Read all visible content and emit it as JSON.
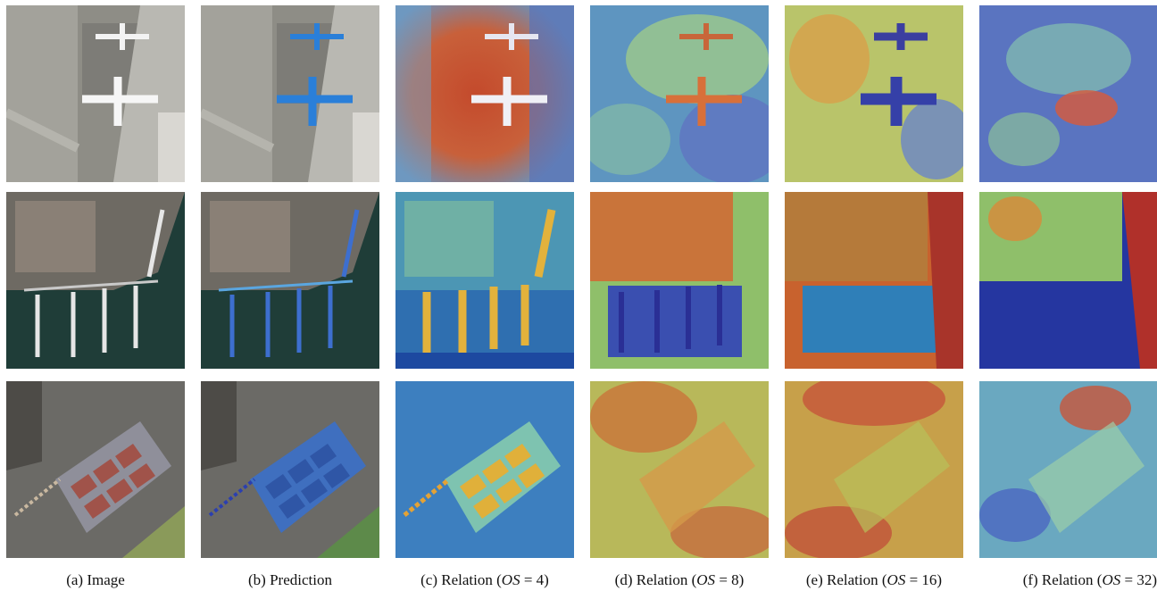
{
  "figure": {
    "columns": [
      {
        "tag": "(a)",
        "label": "Image",
        "kind": "image"
      },
      {
        "tag": "(b)",
        "label": "Prediction",
        "kind": "prediction"
      },
      {
        "tag": "(c)",
        "label": "Relation",
        "os_prefix": "(",
        "os_symbol": "OS",
        "os_eq": " = ",
        "os_value": "4",
        "os_suffix": ")",
        "kind": "relation"
      },
      {
        "tag": "(d)",
        "label": "Relation",
        "os_prefix": "(",
        "os_symbol": "OS",
        "os_eq": " = ",
        "os_value": "8",
        "os_suffix": ")",
        "kind": "relation"
      },
      {
        "tag": "(e)",
        "label": "Relation",
        "os_prefix": "(",
        "os_symbol": "OS",
        "os_eq": " = ",
        "os_value": "16",
        "os_suffix": ")",
        "kind": "relation"
      },
      {
        "tag": "(f)",
        "label": "Relation",
        "os_prefix": "(",
        "os_symbol": "OS",
        "os_eq": " = ",
        "os_value": "32",
        "os_suffix": ")",
        "kind": "relation"
      }
    ],
    "rows": [
      {
        "scene": "airport"
      },
      {
        "scene": "harbor"
      },
      {
        "scene": "tennis-courts"
      }
    ],
    "colors": {
      "prediction_blue": "#2a7fd9",
      "heat_high": "#c0392b",
      "heat_mid": "#e6c84a",
      "heat_low": "#2b3a9c",
      "water": "#1f3d38",
      "tarmac": "#9a9a92"
    }
  }
}
